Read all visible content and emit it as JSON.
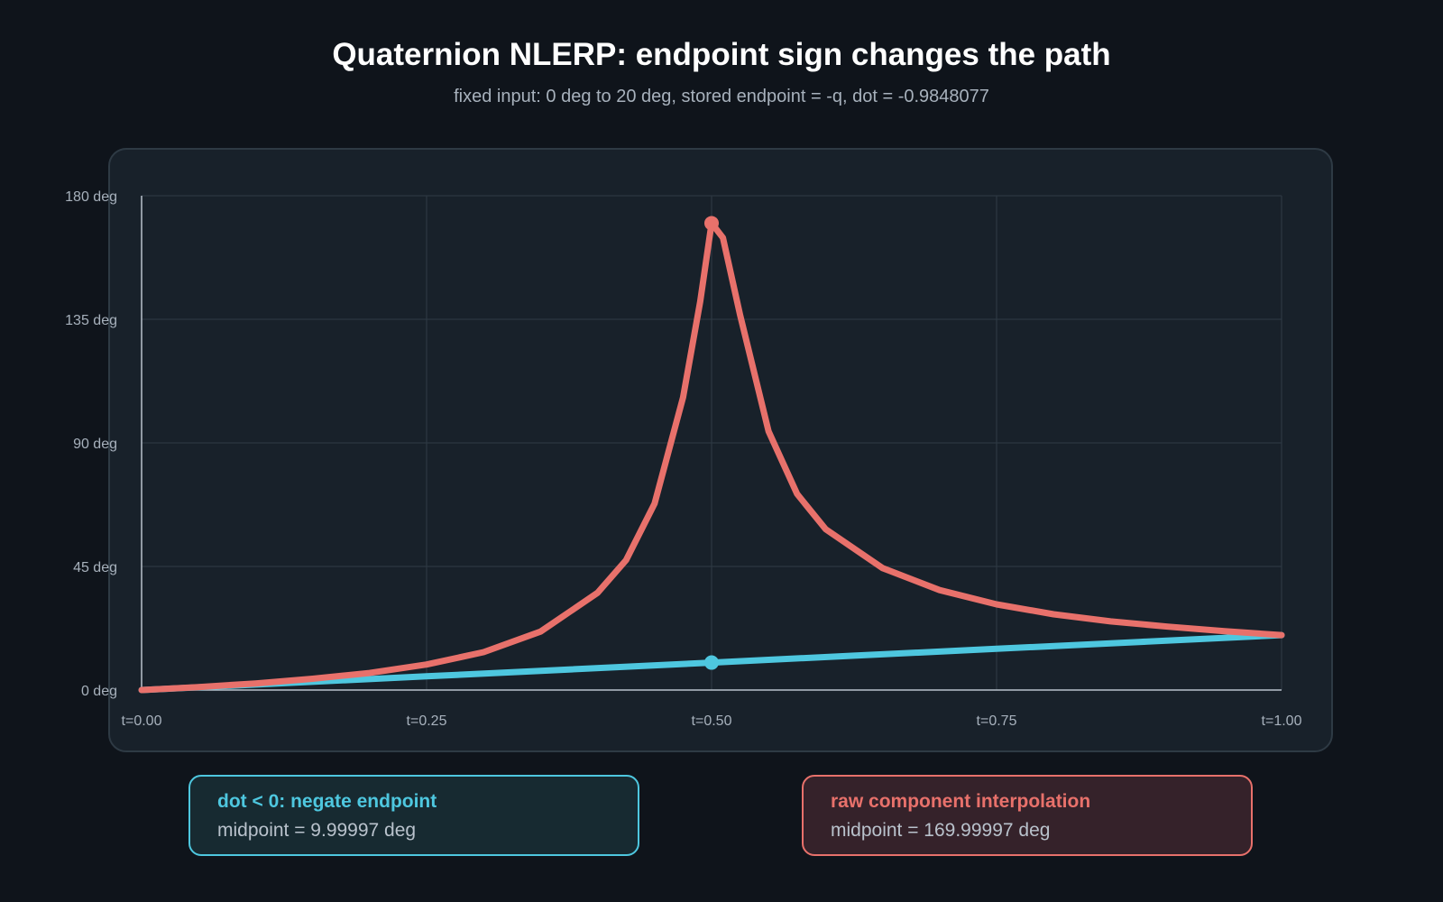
{
  "header": {
    "title": "Quaternion NLERP: endpoint sign changes the path",
    "subtitle": "fixed input: 0 deg to 20 deg, stored endpoint = -q, dot = -0.9848077"
  },
  "colors": {
    "background": "#0f141b",
    "panel": "#18212a",
    "grid": "#2f3b45",
    "axis": "#b9c2cc",
    "corrected": "#4ec7df",
    "raw": "#e8716b"
  },
  "chart_data": {
    "type": "line",
    "xlim": [
      0,
      1
    ],
    "ylim": [
      0,
      180
    ],
    "x_ticks": [
      0,
      0.25,
      0.5,
      0.75,
      1
    ],
    "x_tick_labels": [
      "t=0.00",
      "t=0.25",
      "t=0.50",
      "t=0.75",
      "t=1.00"
    ],
    "y_ticks": [
      0,
      45,
      90,
      135,
      180
    ],
    "y_tick_labels": [
      "0 deg",
      "45 deg",
      "90 deg",
      "135 deg",
      "180 deg"
    ],
    "grid": true,
    "series": [
      {
        "key": "corrected",
        "x": [
          0,
          0.125,
          0.25,
          0.375,
          0.5,
          0.625,
          0.75,
          0.875,
          1
        ],
        "y": [
          0,
          2.5,
          5,
          7.5,
          10,
          12.5,
          15,
          17.5,
          20
        ],
        "marker": {
          "x": 0.5,
          "y": 9.99997
        }
      },
      {
        "key": "raw",
        "x": [
          0,
          0.05,
          0.1,
          0.15,
          0.2,
          0.25,
          0.3,
          0.35,
          0.4,
          0.425,
          0.45,
          0.475,
          0.49,
          0.5,
          0.51,
          0.525,
          0.55,
          0.575,
          0.6,
          0.65,
          0.7,
          0.75,
          0.8,
          0.85,
          0.9,
          0.95,
          1
        ],
        "y": [
          0,
          1.1,
          2.4,
          4.1,
          6.2,
          9.3,
          13.8,
          21.3,
          35.4,
          47.3,
          67.9,
          106.6,
          141.5,
          170,
          164.7,
          136.6,
          94.2,
          71.4,
          58.6,
          44.4,
          36.4,
          31.2,
          27.6,
          25.0,
          23.1,
          21.4,
          20
        ],
        "marker": {
          "x": 0.5,
          "y": 169.99997
        }
      }
    ],
    "legend": [
      {
        "key": "corrected",
        "title": "dot < 0: negate endpoint",
        "detail": "midpoint = 9.99997 deg"
      },
      {
        "key": "raw",
        "title": "raw component interpolation",
        "detail": "midpoint = 169.99997 deg"
      }
    ]
  }
}
